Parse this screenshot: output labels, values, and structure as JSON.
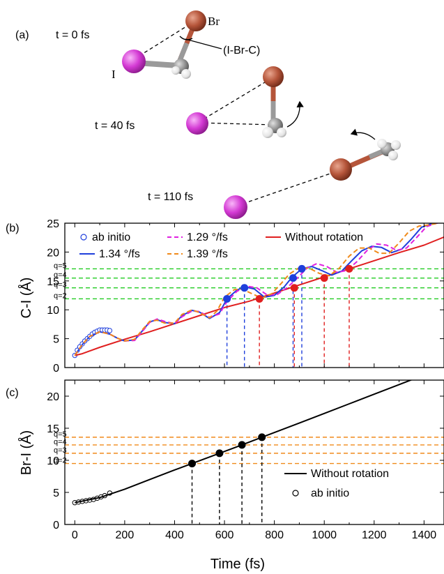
{
  "panel_a": {
    "label": "(a)",
    "frames": [
      {
        "time_label": "t = 0 fs"
      },
      {
        "time_label": "t = 40 fs"
      },
      {
        "time_label": "t = 110 fs"
      }
    ],
    "atom_labels": {
      "br": "Br",
      "i": "I"
    },
    "angle_label": "(I-Br-C)",
    "colors": {
      "iodine": "#d43ad4",
      "bromine": "#b5553a",
      "carbon": "#8f8f8f",
      "hydrogen": "#e4e4e4"
    }
  },
  "chart_data": [
    {
      "panel": "(b)",
      "type": "line",
      "ylabel": "C-I (Å)",
      "xlim": [
        -40,
        1480
      ],
      "ylim": [
        0,
        25
      ],
      "xticks": [
        0,
        200,
        400,
        600,
        800,
        1000,
        1200,
        1400
      ],
      "yticks": [
        0,
        5,
        10,
        15,
        20,
        25
      ],
      "legend": [
        {
          "label": "ab initio",
          "style": "open-circle",
          "color": "#1f3fdc"
        },
        {
          "label": "1.29 °/fs",
          "style": "dash",
          "color": "#e020e0"
        },
        {
          "label": "Without rotation",
          "style": "solid",
          "color": "#e01f1f"
        },
        {
          "label": "1.34 °/fs",
          "style": "solid",
          "color": "#1f3fdc"
        },
        {
          "label": "1.39 °/fs",
          "style": "dash",
          "color": "#f08a1a"
        }
      ],
      "thresholds": [
        {
          "label": "q=5",
          "y": 17.1
        },
        {
          "label": "q=4",
          "y": 15.5
        },
        {
          "label": "q=3",
          "y": 13.8
        },
        {
          "label": "q=2",
          "y": 11.9
        }
      ],
      "threshold_color": "#22cc22",
      "series": [
        {
          "name": "ab initio",
          "color": "#1f3fdc",
          "x": [
            0,
            10,
            20,
            30,
            40,
            50,
            60,
            70,
            80,
            90,
            100,
            110,
            120,
            130,
            140
          ],
          "y": [
            2.1,
            3.0,
            3.6,
            4.1,
            4.6,
            5.0,
            5.4,
            5.8,
            6.1,
            6.3,
            6.5,
            6.5,
            6.5,
            6.5,
            6.4
          ]
        },
        {
          "name": "Without rotation",
          "color": "#e01f1f",
          "x": [
            0,
            30,
            100,
            200,
            300,
            400,
            500,
            600,
            700,
            800,
            900,
            1000,
            1100,
            1200,
            1300,
            1400,
            1480
          ],
          "y": [
            2.1,
            2.4,
            3.5,
            4.9,
            6.2,
            7.6,
            9.0,
            10.4,
            11.5,
            12.9,
            14.3,
            15.7,
            17.1,
            18.5,
            19.9,
            21.2,
            22.6
          ]
        },
        {
          "name": "1.34 °/fs",
          "color": "#1f3fdc",
          "x": [
            0,
            30,
            60,
            100,
            140,
            170,
            200,
            240,
            270,
            300,
            330,
            360,
            400,
            430,
            470,
            500,
            540,
            580,
            610,
            650,
            680,
            720,
            760,
            800,
            840,
            870,
            910,
            950,
            990,
            1030,
            1070,
            1110,
            1150,
            1190,
            1230,
            1270,
            1310,
            1350,
            1390,
            1430,
            1480
          ],
          "y": [
            2.1,
            4.0,
            5.4,
            6.2,
            5.8,
            5.1,
            4.6,
            4.8,
            6.3,
            7.9,
            8.3,
            7.8,
            7.6,
            9.0,
            9.9,
            9.6,
            8.5,
            9.5,
            11.9,
            13.4,
            14.0,
            13.6,
            12.2,
            12.5,
            14.0,
            15.6,
            17.1,
            17.5,
            16.8,
            16.0,
            16.7,
            18.5,
            20.2,
            21.0,
            20.8,
            19.9,
            20.5,
            22.3,
            24.3,
            24.9,
            25.2
          ]
        },
        {
          "name": "1.29 °/fs",
          "color": "#e020e0",
          "x": [
            0,
            30,
            60,
            100,
            140,
            170,
            200,
            240,
            270,
            300,
            330,
            360,
            400,
            430,
            470,
            500,
            540,
            580,
            610,
            650,
            690,
            730,
            770,
            810,
            850,
            890,
            930,
            970,
            1010,
            1050,
            1090,
            1130,
            1170,
            1210,
            1250,
            1290,
            1330,
            1370,
            1410,
            1450,
            1480
          ],
          "y": [
            2.1,
            4.0,
            5.4,
            6.2,
            5.8,
            5.1,
            4.6,
            4.7,
            6.2,
            7.8,
            8.4,
            8.0,
            7.6,
            8.8,
            9.8,
            9.7,
            8.7,
            9.3,
            11.4,
            13.2,
            14.1,
            13.8,
            12.6,
            12.6,
            13.8,
            15.4,
            17.2,
            18.0,
            17.5,
            16.5,
            16.8,
            18.3,
            20.2,
            21.4,
            21.2,
            20.3,
            20.7,
            22.5,
            24.4,
            25.0,
            25.2
          ]
        },
        {
          "name": "1.39 °/fs",
          "color": "#f08a1a",
          "x": [
            0,
            30,
            60,
            100,
            140,
            170,
            200,
            240,
            270,
            300,
            330,
            360,
            400,
            430,
            470,
            500,
            540,
            570,
            600,
            640,
            670,
            710,
            750,
            790,
            830,
            860,
            900,
            940,
            980,
            1020,
            1060,
            1100,
            1140,
            1180,
            1220,
            1260,
            1300,
            1340,
            1380,
            1420,
            1480
          ],
          "y": [
            2.1,
            4.0,
            5.4,
            6.2,
            5.8,
            5.1,
            4.6,
            4.9,
            6.5,
            8.0,
            8.2,
            7.7,
            7.7,
            9.2,
            10.0,
            9.5,
            8.6,
            9.8,
            12.2,
            13.5,
            13.6,
            12.8,
            12.0,
            12.8,
            14.7,
            16.2,
            17.3,
            17.2,
            16.3,
            15.9,
            17.2,
            19.3,
            20.7,
            20.7,
            19.8,
            19.8,
            21.6,
            23.6,
            24.5,
            24.7,
            25.2
          ]
        }
      ],
      "markers": [
        {
          "color": "#1f3fdc",
          "x": [
            610,
            680,
            875,
            910
          ],
          "y": [
            11.9,
            13.8,
            15.5,
            17.1
          ]
        },
        {
          "color": "#e01f1f",
          "x": [
            740,
            880,
            1000,
            1100
          ],
          "y": [
            11.9,
            13.8,
            15.5,
            17.1
          ]
        }
      ]
    },
    {
      "panel": "(c)",
      "type": "line",
      "xlabel": "Time (fs)",
      "ylabel": "Br-I (Å)",
      "xlim": [
        -40,
        1480
      ],
      "ylim": [
        0,
        22.5
      ],
      "xticks": [
        0,
        200,
        400,
        600,
        800,
        1000,
        1200,
        1400
      ],
      "yticks": [
        0,
        5,
        10,
        15,
        20
      ],
      "legend": [
        {
          "label": "Without rotation",
          "style": "solid",
          "color": "#000000"
        },
        {
          "label": "ab initio",
          "style": "open-circle",
          "color": "#000000"
        }
      ],
      "thresholds": [
        {
          "label": "q=5",
          "y": 13.6
        },
        {
          "label": "q=4",
          "y": 12.4
        },
        {
          "label": "q=3",
          "y": 11.1
        },
        {
          "label": "q=2",
          "y": 9.5
        }
      ],
      "threshold_color": "#f08a1a",
      "series": [
        {
          "name": "ab initio",
          "color": "#000000",
          "x": [
            0,
            15,
            30,
            45,
            60,
            75,
            90,
            105,
            120,
            140
          ],
          "y": [
            3.4,
            3.5,
            3.6,
            3.7,
            3.8,
            3.9,
            4.1,
            4.3,
            4.5,
            4.9
          ]
        },
        {
          "name": "Without rotation",
          "color": "#000000",
          "x": [
            0,
            100,
            200,
            300,
            400,
            470,
            580,
            670,
            750,
            900,
            1000,
            1100,
            1200,
            1300,
            1380
          ],
          "y": [
            3.4,
            4.2,
            5.5,
            7.0,
            8.5,
            9.5,
            11.1,
            12.4,
            13.6,
            15.8,
            17.3,
            18.8,
            20.3,
            21.8,
            23.0
          ]
        }
      ],
      "markers": [
        {
          "color": "#000000",
          "x": [
            470,
            580,
            670,
            750
          ],
          "y": [
            9.5,
            11.1,
            12.4,
            13.6
          ]
        }
      ]
    }
  ]
}
